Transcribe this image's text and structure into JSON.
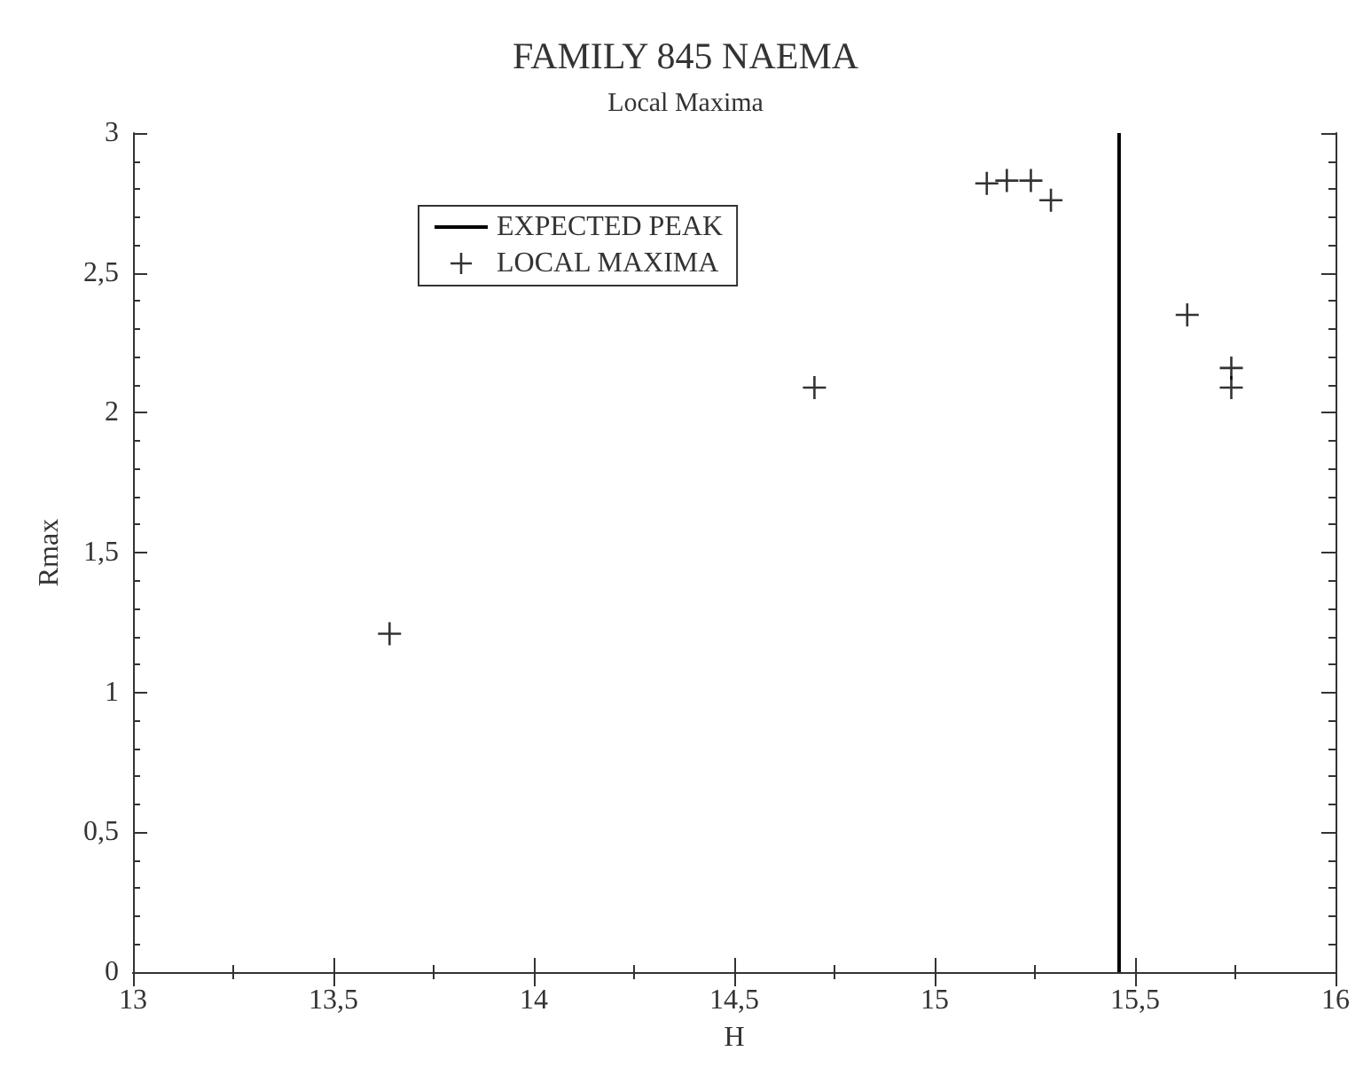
{
  "chart_data": {
    "type": "scatter",
    "title": "FAMILY 845 NAEMA",
    "subtitle": "Local Maxima",
    "xlabel": "H",
    "ylabel": "Rmax",
    "series": [
      {
        "name": "EXPECTED PEAK",
        "type": "line",
        "color": "#000000",
        "x": [
          15.46,
          15.46
        ],
        "values": [
          0,
          3
        ]
      },
      {
        "name": "LOCAL MAXIMA",
        "color": "#000000",
        "marker": "cross",
        "x": [
          13.64,
          14.7,
          15.13,
          15.18,
          15.24,
          15.29,
          15.63,
          15.74,
          15.74
        ],
        "values": [
          1.21,
          2.09,
          2.82,
          2.83,
          2.83,
          2.76,
          2.35,
          2.16,
          2.09
        ]
      }
    ],
    "xlim": [
      13,
      16
    ],
    "xticks": [
      13,
      {
        "value": 13.5,
        "label": "13,5"
      },
      14,
      {
        "value": 14.5,
        "label": "14,5"
      },
      15,
      {
        "value": 15.5,
        "label": "15,5"
      },
      16
    ],
    "ylim": [
      0,
      3
    ],
    "yticks": [
      0,
      {
        "value": 0.5,
        "label": "0,5"
      },
      1,
      {
        "value": 1.5,
        "label": "1,5"
      },
      2,
      {
        "value": 2.5,
        "label": "2,5"
      },
      3
    ],
    "legend": "top left",
    "grid": false
  }
}
